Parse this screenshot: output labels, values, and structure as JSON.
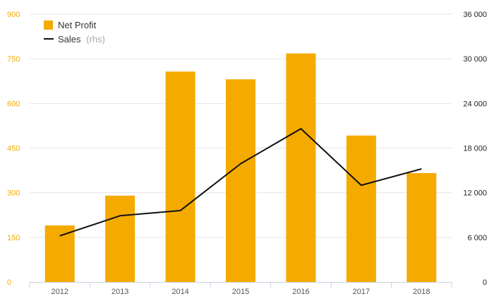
{
  "chart_data": {
    "type": "bar",
    "categories": [
      "2012",
      "2013",
      "2014",
      "2015",
      "2016",
      "2017",
      "2018"
    ],
    "series": [
      {
        "name": "Net Profit",
        "type": "bar",
        "axis": "left",
        "color": "#f5aa00",
        "values": [
          190,
          290,
          707,
          681,
          768,
          492,
          366
        ]
      },
      {
        "name": "Sales",
        "name_suffix": "(rhs)",
        "type": "line",
        "axis": "right",
        "color": "#111111",
        "values": [
          6200,
          8900,
          9600,
          15900,
          20600,
          13000,
          15200
        ]
      }
    ],
    "y_left": {
      "ylim": [
        0,
        900
      ],
      "ticks": [
        0,
        150,
        300,
        450,
        600,
        750,
        900
      ],
      "tick_labels": [
        "0",
        "150",
        "300",
        "450",
        "600",
        "750",
        "900"
      ],
      "color": "#f5aa00"
    },
    "y_right": {
      "ylim": [
        0,
        36000
      ],
      "ticks": [
        0,
        6000,
        12000,
        18000,
        24000,
        30000,
        36000
      ],
      "tick_labels": [
        "0",
        "6 000",
        "12 000",
        "18 000",
        "24 000",
        "30 000",
        "36 000"
      ],
      "color": "#222222"
    },
    "grid": true,
    "legend_position": "top-left",
    "title": "",
    "xlabel": "",
    "ylabel": ""
  }
}
